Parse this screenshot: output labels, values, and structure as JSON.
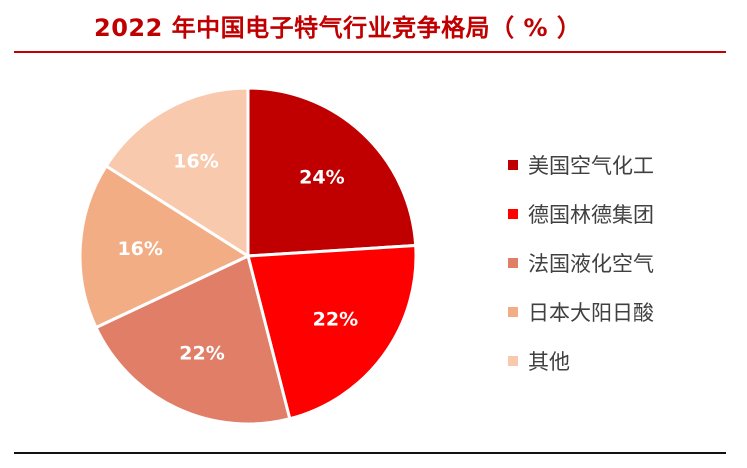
{
  "header": {
    "title": "2022 年中国电子特气行业竞争格局（ % ）"
  },
  "chart_data": {
    "type": "pie",
    "title": "2022 年中国电子特气行业竞争格局（ % ）",
    "legend_position": "right",
    "start_angle_deg": 0,
    "direction": "clockwise",
    "slices": [
      {
        "label": "美国空气化工",
        "value": 24,
        "display": "24%",
        "color": "#c00000"
      },
      {
        "label": "德国林德集团",
        "value": 22,
        "display": "22%",
        "color": "#ff0000"
      },
      {
        "label": "法国液化空气",
        "value": 22,
        "display": "22%",
        "color": "#e07e68"
      },
      {
        "label": "日本大阳日酸",
        "value": 16,
        "display": "16%",
        "color": "#f2ad84"
      },
      {
        "label": "其他",
        "value": 16,
        "display": "16%",
        "color": "#f8c9ad"
      }
    ]
  }
}
